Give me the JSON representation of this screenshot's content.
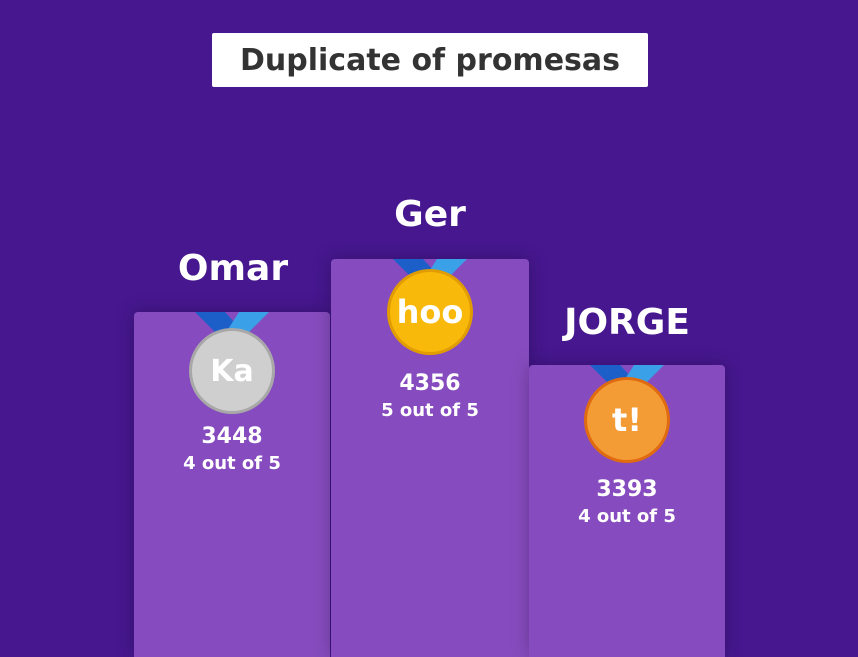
{
  "title": "Duplicate of promesas",
  "podium": [
    {
      "place": "second",
      "name": "Omar",
      "score": "3448",
      "correct": "4 out of 5",
      "medal_text": "Ka",
      "medal_color": "#cfcfcf",
      "medal_border": "#a8a8a8"
    },
    {
      "place": "first",
      "name": "Ger",
      "score": "4356",
      "correct": "5 out of 5",
      "medal_text": "hoo",
      "medal_color": "#f8b90a",
      "medal_border": "#e09c00"
    },
    {
      "place": "third",
      "name": "JORGE",
      "score": "3393",
      "correct": "4 out of 5",
      "medal_text": "t!",
      "medal_color": "#f39b34",
      "medal_border": "#e06a10"
    }
  ],
  "colors": {
    "background": "#46178f",
    "podium": "#864cbf",
    "ribbon_dark": "#1d5fc9",
    "ribbon_light": "#3aa0e8"
  }
}
